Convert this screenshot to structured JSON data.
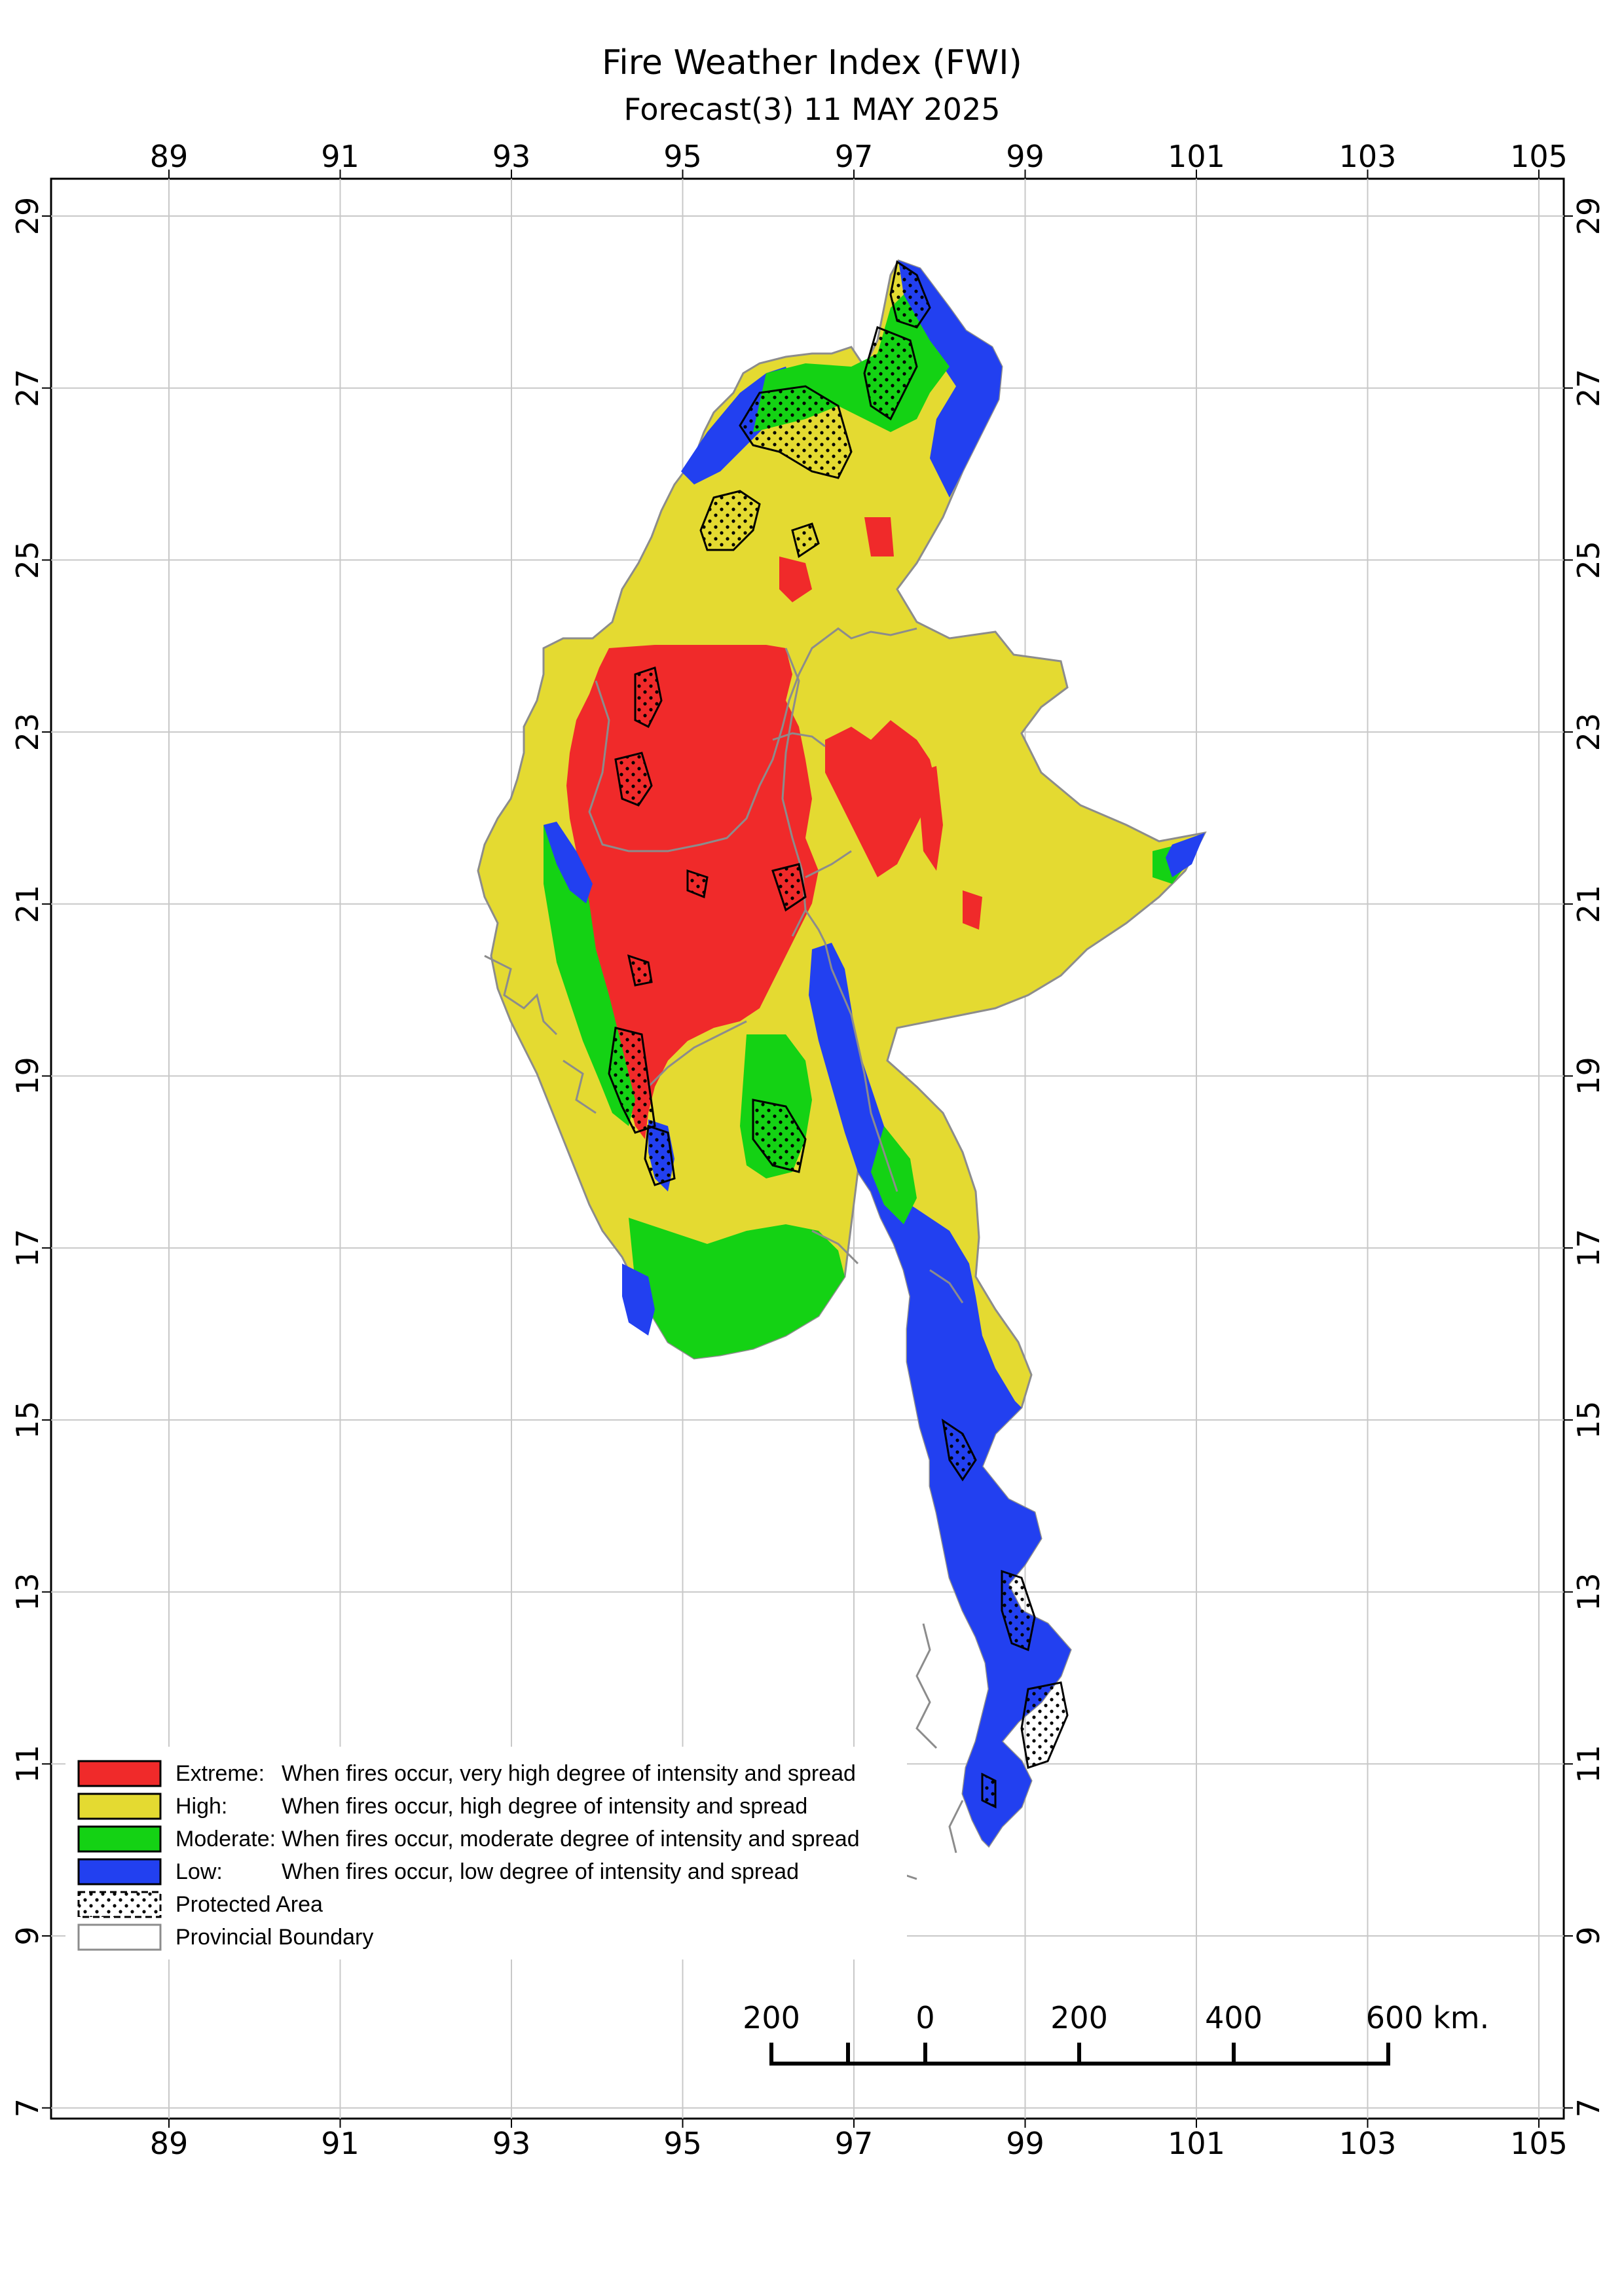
{
  "title": "Fire Weather Index (FWI)",
  "subtitle": "Forecast(3) 11 MAY 2025",
  "axes": {
    "longitude_ticks": [
      "89",
      "91",
      "93",
      "95",
      "97",
      "99",
      "101",
      "103",
      "105"
    ],
    "latitude_ticks": [
      "29",
      "27",
      "25",
      "23",
      "21",
      "19",
      "17",
      "15",
      "13",
      "11",
      "9",
      "7"
    ]
  },
  "colors": {
    "extreme": "#f02a2a",
    "high": "#e4da31",
    "moderate": "#14d214",
    "low": "#2240f0",
    "boundary": "#8c8c8c"
  },
  "legend": {
    "items": [
      {
        "key": "extreme",
        "label": "Extreme:",
        "description": "When fires occur, very high degree of intensity and spread"
      },
      {
        "key": "high",
        "label": "High:",
        "description": "When fires occur, high degree of intensity and spread"
      },
      {
        "key": "moderate",
        "label": "Moderate:",
        "description": "When fires occur, moderate degree of intensity and spread"
      },
      {
        "key": "low",
        "label": "Low:",
        "description": "When fires occur, low degree of intensity and spread"
      },
      {
        "key": "protected",
        "label": "Protected Area",
        "description": ""
      },
      {
        "key": "boundary",
        "label": "Provincial Boundary",
        "description": ""
      }
    ]
  },
  "scale_bar": {
    "labels": [
      "200",
      "0",
      "200",
      "400",
      "600 km."
    ]
  }
}
